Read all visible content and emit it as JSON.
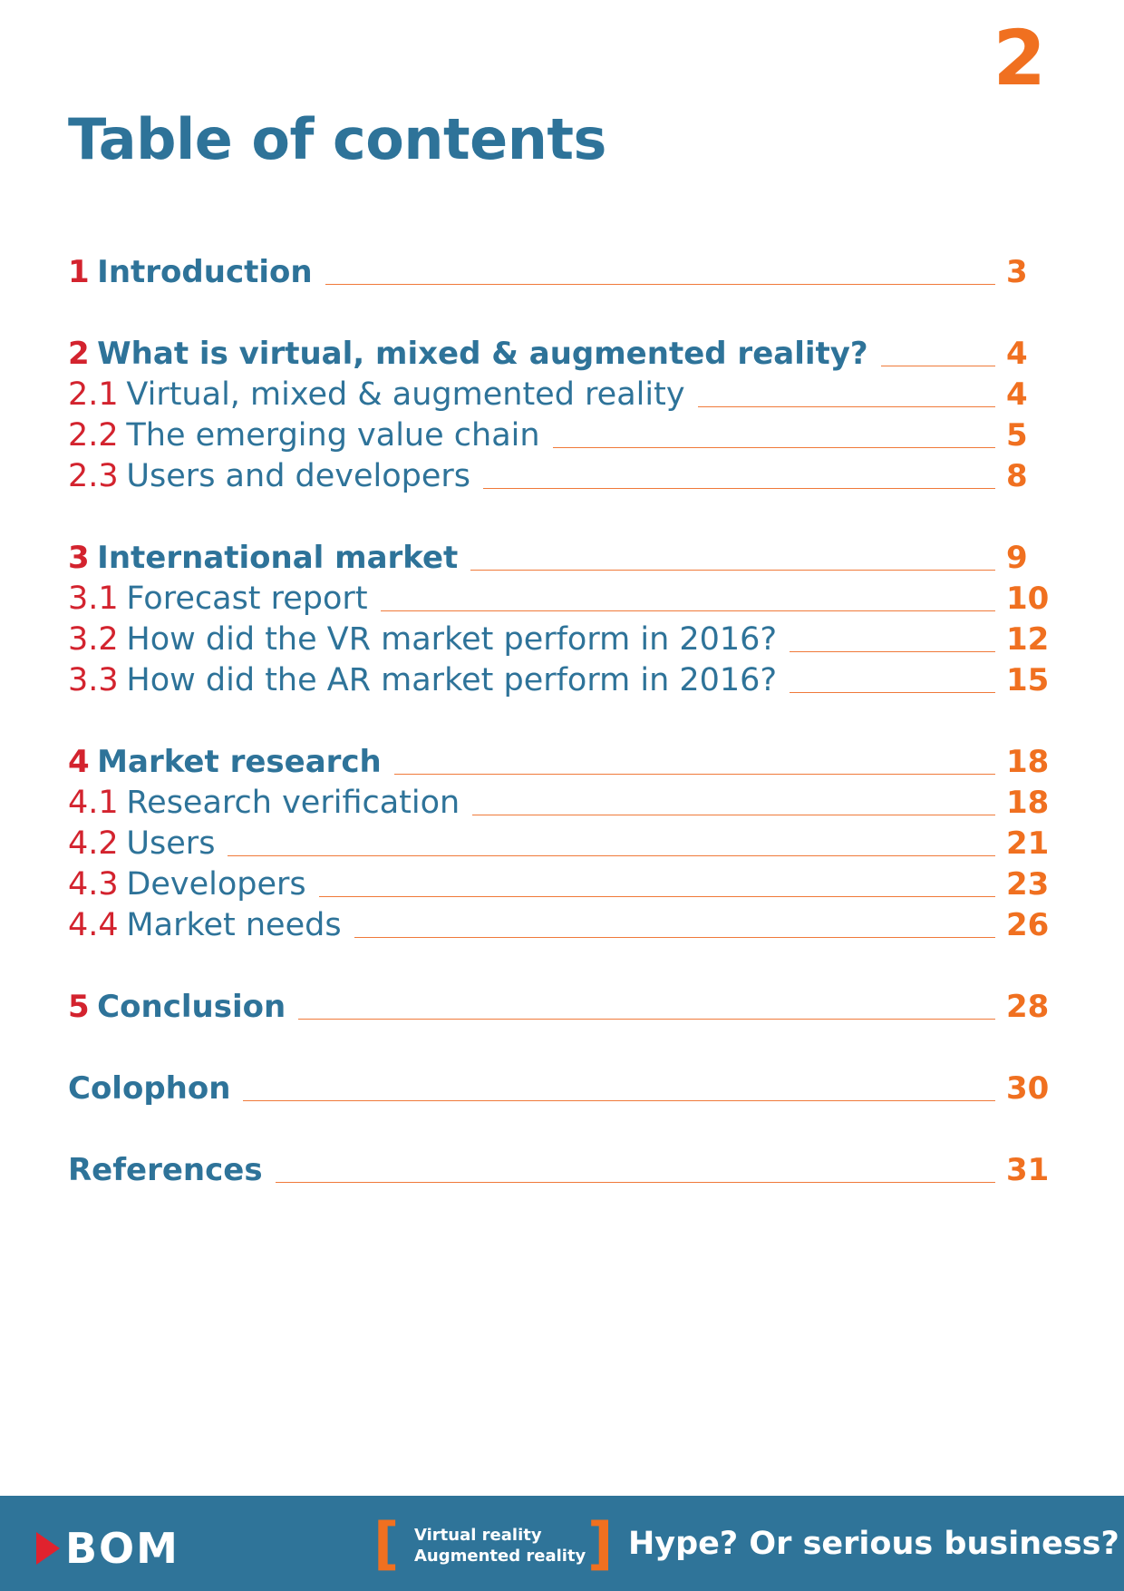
{
  "page_number": "2",
  "title": "Table of contents",
  "entries": [
    {
      "num": "1",
      "label": "Introduction",
      "page": "3"
    },
    {
      "num": "2",
      "label": "What is virtual, mixed & augmented reality?",
      "page": "4"
    },
    {
      "num": "2.1",
      "label": " Virtual, mixed & augmented reality",
      "page": "4"
    },
    {
      "num": "2.2",
      "label": " The emerging value chain",
      "page": "5"
    },
    {
      "num": "2.3",
      "label": " Users and developers",
      "page": "8"
    },
    {
      "num": "3",
      "label": "International market",
      "page": "9"
    },
    {
      "num": "3.1",
      "label": "Forecast report",
      "page": "10"
    },
    {
      "num": "3.2",
      "label": "How did the VR market perform in 2016?",
      "page": "12"
    },
    {
      "num": "3.3",
      "label": "How did the AR market perform in 2016?",
      "page": "15"
    },
    {
      "num": "4",
      "label": "Market research",
      "page": "18"
    },
    {
      "num": "4.1",
      "label": "Research verification",
      "page": "18"
    },
    {
      "num": "4.2",
      "label": "Users",
      "page": "21"
    },
    {
      "num": "4.3",
      "label": "Developers",
      "page": "23"
    },
    {
      "num": "4.4",
      "label": "Market needs",
      "page": "26"
    },
    {
      "num": "5",
      "label": "Conclusion",
      "page": "28"
    },
    {
      "num": "",
      "label": "Colophon",
      "page": "30"
    },
    {
      "num": "",
      "label": "References",
      "page": "31"
    }
  ],
  "footer": {
    "logo_text": "BOM",
    "subject_line1": "Virtual reality",
    "subject_line2": "Augmented  reality",
    "bracket_left": "[",
    "bracket_right": "]",
    "tagline": "Hype? Or serious business?"
  }
}
